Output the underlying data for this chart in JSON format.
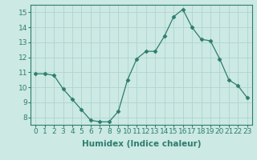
{
  "x": [
    0,
    1,
    2,
    3,
    4,
    5,
    6,
    7,
    8,
    9,
    10,
    11,
    12,
    13,
    14,
    15,
    16,
    17,
    18,
    19,
    20,
    21,
    22,
    23
  ],
  "y": [
    10.9,
    10.9,
    10.8,
    9.9,
    9.2,
    8.5,
    7.8,
    7.7,
    7.7,
    8.4,
    10.5,
    11.9,
    12.4,
    12.4,
    13.4,
    14.7,
    15.2,
    14.0,
    13.2,
    13.1,
    11.9,
    10.5,
    10.1,
    9.3
  ],
  "xlabel": "Humidex (Indice chaleur)",
  "ylim": [
    7.5,
    15.5
  ],
  "xlim": [
    -0.5,
    23.5
  ],
  "yticks": [
    8,
    9,
    10,
    11,
    12,
    13,
    14,
    15
  ],
  "xticks": [
    0,
    1,
    2,
    3,
    4,
    5,
    6,
    7,
    8,
    9,
    10,
    11,
    12,
    13,
    14,
    15,
    16,
    17,
    18,
    19,
    20,
    21,
    22,
    23
  ],
  "line_color": "#2e7d6e",
  "marker": "D",
  "marker_size": 2.5,
  "bg_color": "#cce9e4",
  "grid_color": "#aed4ce",
  "tick_label_size": 6.5,
  "xlabel_size": 7.5
}
